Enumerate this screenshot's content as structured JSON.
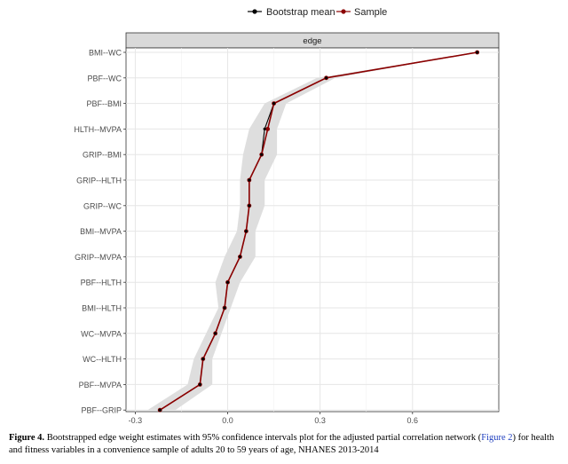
{
  "legend": {
    "items": [
      {
        "label": "Bootstrap mean",
        "color": "#000000"
      },
      {
        "label": "Sample",
        "color": "#8b0000"
      }
    ]
  },
  "chart_data": {
    "type": "line",
    "panel_strip": "edge",
    "categories": [
      "BMI--WC",
      "PBF--WC",
      "PBF--BMI",
      "HLTH--MVPA",
      "GRIP--BMI",
      "GRIP--HLTH",
      "GRIP--WC",
      "BMI--MVPA",
      "GRIP--MVPA",
      "PBF--HLTH",
      "BMI--HLTH",
      "WC--MVPA",
      "WC--HLTH",
      "PBF--MVPA",
      "PBF--GRIP"
    ],
    "series": [
      {
        "name": "Sample",
        "values": [
          0.81,
          0.32,
          0.15,
          0.13,
          0.11,
          0.07,
          0.07,
          0.06,
          0.04,
          0.0,
          -0.01,
          -0.04,
          -0.08,
          -0.09,
          -0.22
        ]
      },
      {
        "name": "Bootstrap mean",
        "values": [
          0.81,
          0.32,
          0.15,
          0.12,
          0.11,
          0.07,
          0.07,
          0.06,
          0.04,
          0.0,
          -0.01,
          -0.04,
          -0.08,
          -0.09,
          -0.22
        ]
      }
    ],
    "ci_lower": [
      0.81,
      0.29,
      0.12,
      0.07,
      0.05,
      0.04,
      0.04,
      0.03,
      -0.01,
      -0.04,
      -0.03,
      -0.07,
      -0.11,
      -0.13,
      -0.26
    ],
    "ci_upper": [
      0.81,
      0.35,
      0.19,
      0.16,
      0.16,
      0.12,
      0.12,
      0.09,
      0.09,
      0.04,
      0.01,
      -0.02,
      -0.05,
      -0.05,
      -0.17
    ],
    "x_ticks": [
      -0.3,
      0.0,
      0.3,
      0.6
    ],
    "x_tick_labels": [
      "-0.3",
      "0.0",
      "0.3",
      "0.6"
    ],
    "xlim": [
      -0.33,
      0.88
    ],
    "grid": true,
    "legend_position": "top",
    "colors": {
      "ribbon": "#dedede",
      "sample_line": "#8b0000",
      "mean_point": "#000000",
      "strip_bg": "#d9d9d9"
    }
  },
  "caption": {
    "label": "Figure 4.",
    "text_before": " Bootstrapped edge weight estimates with 95% confidence intervals plot for the adjusted partial correlation network (",
    "link": "Figure 2",
    "text_after": ") for health and fitness variables in a convenience sample of adults 20 to 59 years of age, NHANES 2013-2014"
  }
}
